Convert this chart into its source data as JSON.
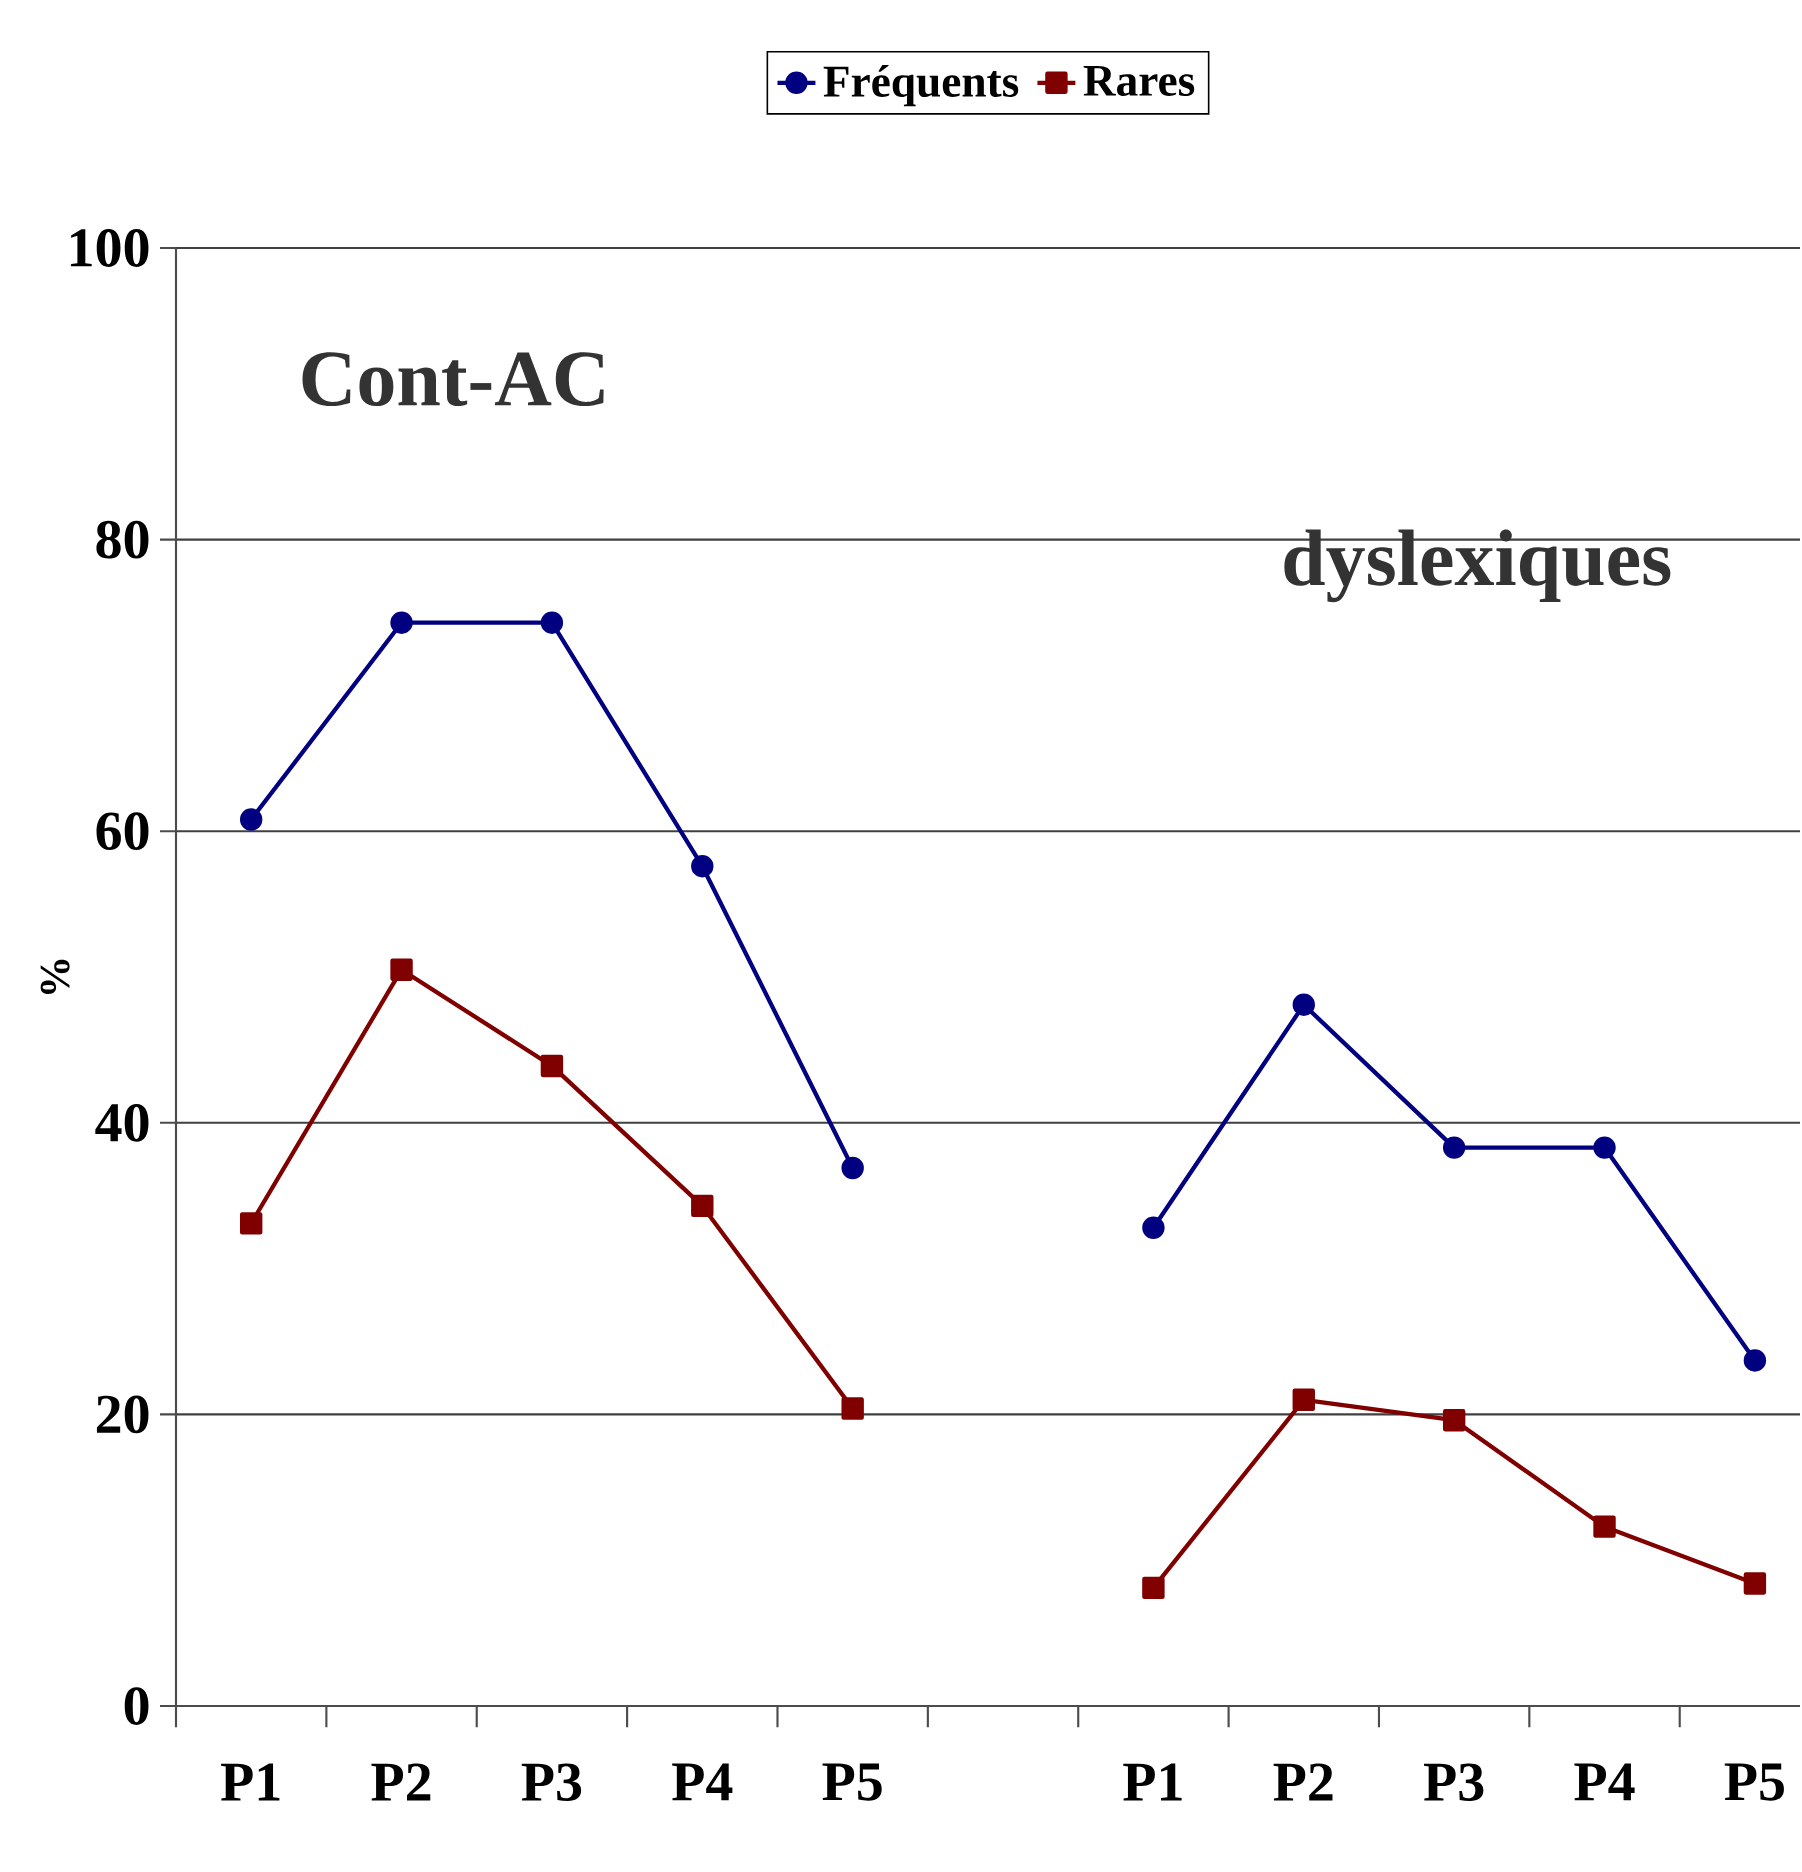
{
  "chart_data": {
    "type": "line",
    "categories": [
      "P1",
      "P2",
      "P3",
      "P4",
      "P5",
      null,
      "P1",
      "P2",
      "P3",
      "P4",
      "P5"
    ],
    "series": [
      {
        "name": "Fréquents",
        "color": "#000080",
        "marker": "circle",
        "values": [
          60.8,
          74.3,
          74.3,
          57.6,
          36.9,
          null,
          32.8,
          48.1,
          38.3,
          38.3,
          23.7
        ]
      },
      {
        "name": "Rares",
        "color": "#800000",
        "marker": "square",
        "values": [
          33.1,
          50.5,
          43.9,
          34.3,
          20.4,
          null,
          8.1,
          21.0,
          19.6,
          12.3,
          8.4
        ]
      }
    ],
    "ylabel": "%",
    "ylim": [
      0,
      100
    ],
    "yticks": [
      0,
      20,
      40,
      60,
      80,
      100
    ],
    "grid": "y",
    "legend": "top",
    "annotations": [
      "Cont-AC",
      "dyslexiques"
    ]
  }
}
